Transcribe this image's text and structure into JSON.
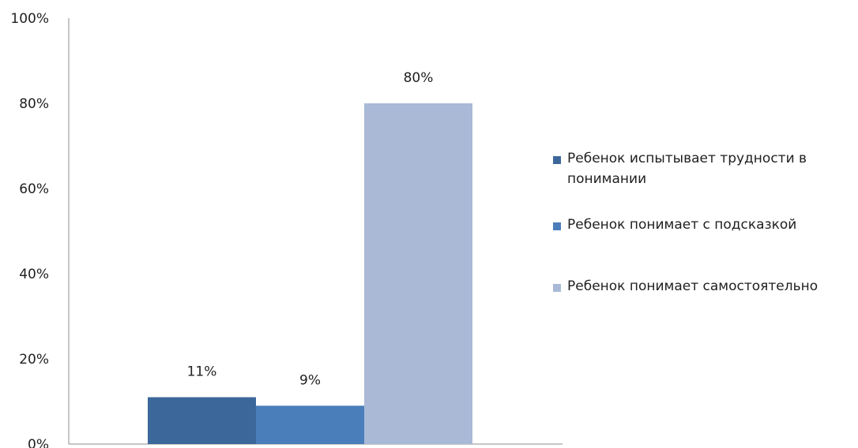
{
  "chart_data": {
    "type": "bar",
    "y_axis": {
      "min": 0,
      "max": 100,
      "ticks": [
        0,
        20,
        40,
        60,
        80,
        100
      ],
      "tick_labels": [
        "0%",
        "20%",
        "40%",
        "60%",
        "80%",
        "100%"
      ]
    },
    "grid": false,
    "legend_position": "right",
    "series": [
      {
        "name": "Ребенок испытывает трудности в понимании",
        "value": 11,
        "label": "11%",
        "color": "#3c679a"
      },
      {
        "name": "Ребенок понимает с подсказкой",
        "value": 9,
        "label": "9%",
        "color": "#4a7ebb"
      },
      {
        "name": "Ребенок понимает самостоятельно",
        "value": 80,
        "label": "80%",
        "color": "#a9b9d6"
      }
    ]
  }
}
